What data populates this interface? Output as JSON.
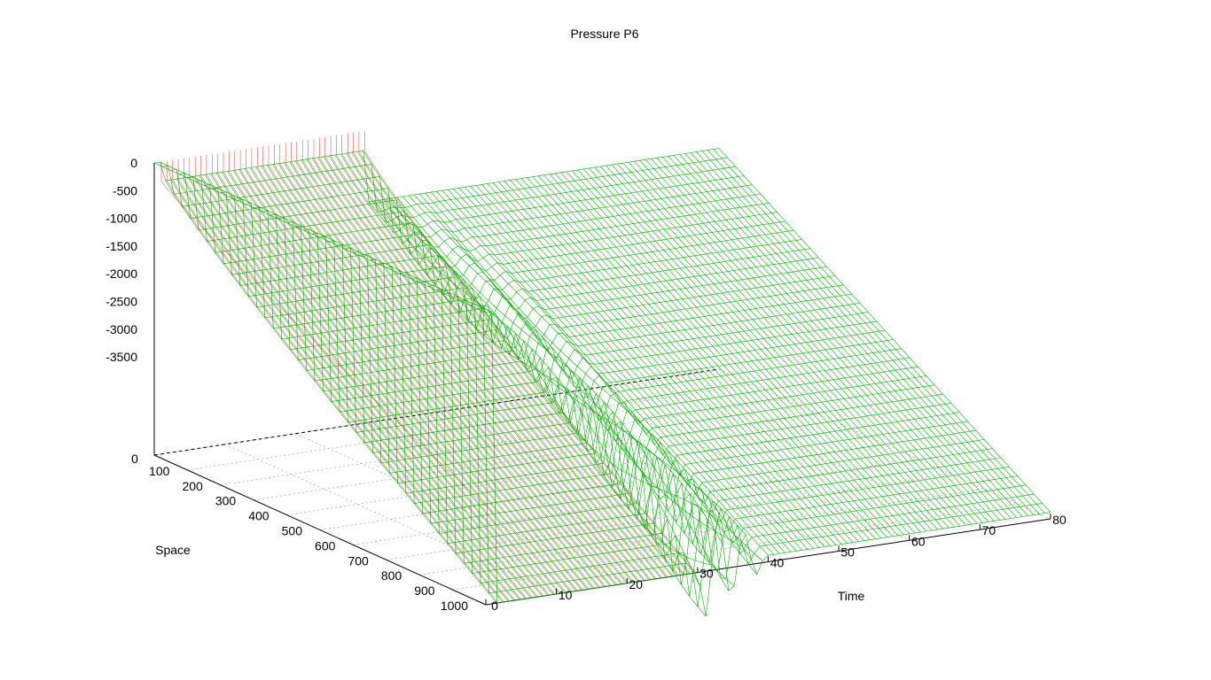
{
  "chart_data": {
    "type": "surface",
    "title": "Pressure P6",
    "xlabel": "Time",
    "ylabel": "Space",
    "zlabel": "",
    "x_ticks": [
      "0",
      "10",
      "20",
      "30",
      "40",
      "50",
      "60",
      "70",
      "80"
    ],
    "y_ticks": [
      "100",
      "200",
      "300",
      "400",
      "500",
      "600",
      "700",
      "800",
      "900",
      "1000"
    ],
    "y_origin_tick": "0",
    "z_ticks": [
      "0",
      "-500",
      "-1000",
      "-1500",
      "-2000",
      "-2500",
      "-3000",
      "-3500"
    ],
    "z_base_tick": "0",
    "xlim": [
      0,
      80
    ],
    "ylim": [
      0,
      1000
    ],
    "zlim": [
      -4500,
      0
    ],
    "grid": true,
    "surface_colors": {
      "top": "#00b000",
      "bottom": "#e00000"
    },
    "axis_color": "#000000",
    "grid_color": "#a0a0a0",
    "surface_description": [
      {
        "time_range": [
          0,
          1
        ],
        "pressure": 0
      },
      {
        "time_range": [
          1,
          30
        ],
        "pressure_space_0": -300,
        "pressure_space_1000": -4500
      },
      {
        "time_range": [
          30,
          40
        ],
        "pressure": "oscillating"
      },
      {
        "time_range": [
          40,
          80
        ],
        "pressure_space_0": -1100,
        "pressure_space_1000": -4400
      }
    ]
  }
}
